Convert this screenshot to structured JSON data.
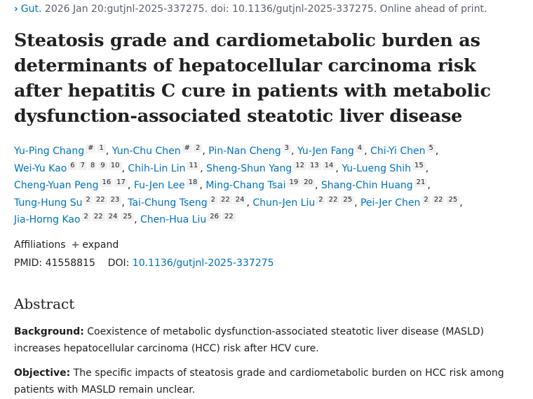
{
  "citation": {
    "journal": "Gut.",
    "details": "2026 Jan 20:gutjnl-2025-337275. doi: 10.1136/gutjnl-2025-337275. Online ahead of print."
  },
  "title": "Steatosis grade and cardiometabolic burden as determinants of hepatocellular carcinoma risk after hepatitis C cure in patients with metabolic dysfunction-associated steatotic liver disease",
  "authors": [
    {
      "name": "Yu-Ping Chang",
      "sups": [
        "#",
        "1"
      ]
    },
    {
      "name": "Yun-Chu Chen",
      "sups": [
        "#",
        "2"
      ]
    },
    {
      "name": "Pin-Nan Cheng",
      "sups": [
        "3"
      ]
    },
    {
      "name": "Yu-Jen Fang",
      "sups": [
        "4"
      ]
    },
    {
      "name": "Chi-Yi Chen",
      "sups": [
        "5"
      ]
    },
    {
      "name": "Wei-Yu Kao",
      "sups": [
        "6",
        "7",
        "8",
        "9",
        "10"
      ]
    },
    {
      "name": "Chih-Lin Lin",
      "sups": [
        "11"
      ]
    },
    {
      "name": "Sheng-Shun Yang",
      "sups": [
        "12",
        "13",
        "14"
      ]
    },
    {
      "name": "Yu-Lueng Shih",
      "sups": [
        "15"
      ]
    },
    {
      "name": "Cheng-Yuan Peng",
      "sups": [
        "16",
        "17"
      ]
    },
    {
      "name": "Fu-Jen Lee",
      "sups": [
        "18"
      ]
    },
    {
      "name": "Ming-Chang Tsai",
      "sups": [
        "19",
        "20"
      ]
    },
    {
      "name": "Shang-Chin Huang",
      "sups": [
        "21"
      ]
    },
    {
      "name": "Tung-Hung Su",
      "sups": [
        "2",
        "22",
        "23"
      ]
    },
    {
      "name": "Tai-Chung Tseng",
      "sups": [
        "2",
        "22",
        "24"
      ]
    },
    {
      "name": "Chun-Jen Liu",
      "sups": [
        "2",
        "22",
        "25"
      ]
    },
    {
      "name": "Pei-Jer Chen",
      "sups": [
        "2",
        "22",
        "25"
      ]
    },
    {
      "name": "Jia-Horng Kao",
      "sups": [
        "2",
        "22",
        "24",
        "25"
      ]
    },
    {
      "name": "Chen-Hua Liu",
      "sups": [
        "26",
        "22"
      ]
    }
  ],
  "affiliations": {
    "label": "Affiliations",
    "toggle": "expand"
  },
  "ids": {
    "pmid_label": "PMID:",
    "pmid": "41558815",
    "doi_label": "DOI:",
    "doi": "10.1136/gutjnl-2025-337275"
  },
  "abstract": {
    "heading": "Abstract",
    "background_label": "Background:",
    "background_text": " Coexistence of metabolic dysfunction-associated steatotic liver disease (MASLD) increases hepatocellular carcinoma (HCC) risk after HCV cure.",
    "objective_label": "Objective:",
    "objective_text": " The specific impacts of steatosis grade and cardiometabolic burden on HCC risk among patients with MASLD remain unclear."
  }
}
